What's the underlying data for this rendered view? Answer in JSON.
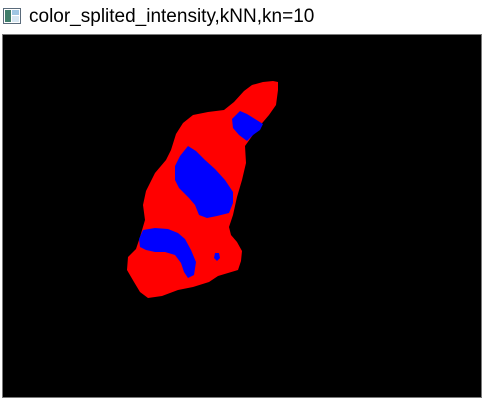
{
  "window": {
    "title": "color_splited_intensity,kNN,kn=10",
    "icon": "image-window-icon"
  },
  "canvas": {
    "background_color": "#000000",
    "region_colors": {
      "primary": "#ff0000",
      "secondary": "#0000ff"
    }
  }
}
